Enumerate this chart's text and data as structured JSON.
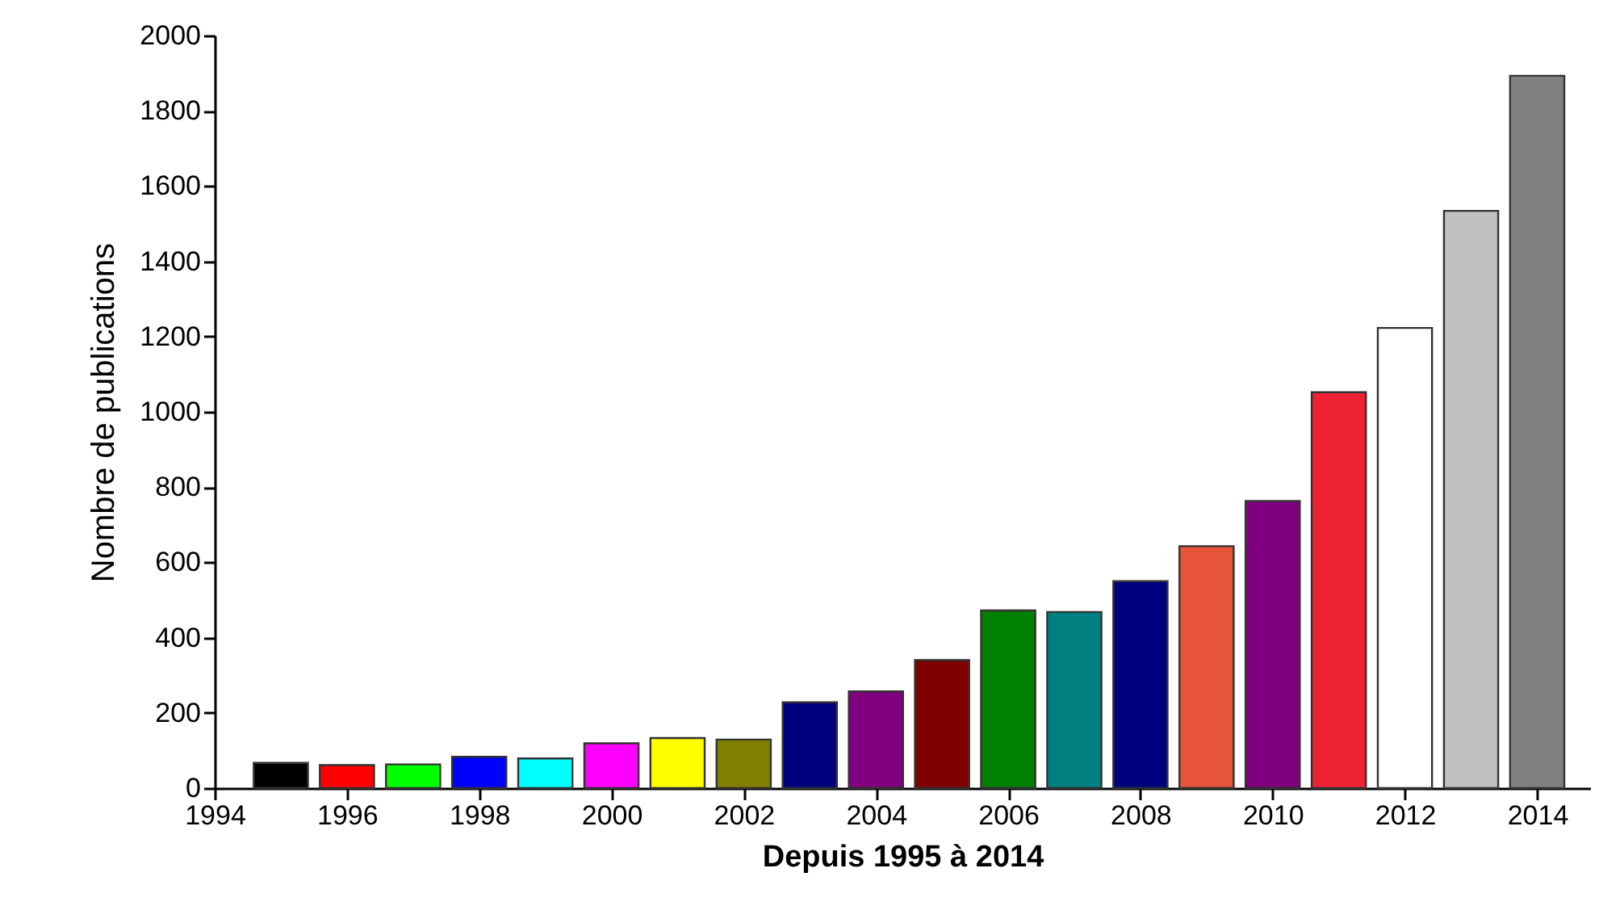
{
  "chart_data": {
    "type": "bar",
    "xlabel": "Depuis 1995 à 2014",
    "ylabel": "Nombre de publications",
    "x": [
      1995,
      1996,
      1997,
      1998,
      1999,
      2000,
      2001,
      2002,
      2003,
      2004,
      2005,
      2006,
      2007,
      2008,
      2009,
      2010,
      2011,
      2012,
      2013,
      2014
    ],
    "values": [
      67,
      61,
      63,
      83,
      79,
      119,
      133,
      129,
      228,
      257,
      340,
      472,
      468,
      550,
      643,
      763,
      1052,
      1223,
      1534,
      1893
    ],
    "colors": [
      "#000000",
      "#ff0000",
      "#00ff00",
      "#0000ff",
      "#00ffff",
      "#ff00ff",
      "#ffff00",
      "#808000",
      "#000080",
      "#800080",
      "#800000",
      "#008000",
      "#008080",
      "#000080",
      "#e6553a",
      "#7f007f",
      "#ee2233",
      "#ffffff",
      "#c0c0c0",
      "#808080"
    ],
    "xlim": [
      1994,
      2014.8
    ],
    "xticks": [
      1994,
      1996,
      1998,
      2000,
      2002,
      2004,
      2006,
      2008,
      2010,
      2012,
      2014
    ],
    "ylim": [
      0,
      2000
    ],
    "yticks": [
      0,
      200,
      400,
      600,
      800,
      1000,
      1200,
      1400,
      1600,
      1800,
      2000
    ],
    "grid": false,
    "legend": false
  }
}
